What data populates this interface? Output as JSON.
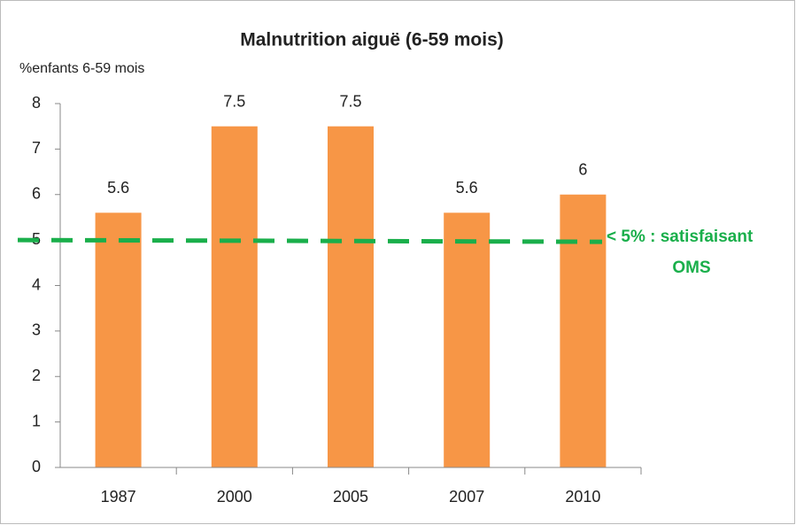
{
  "chart_data": {
    "type": "bar",
    "title": "Malnutrition aiguë (6-59 mois)",
    "y_label": "%enfants 6-59 mois",
    "categories": [
      "1987",
      "2000",
      "2005",
      "2007",
      "2010"
    ],
    "values": [
      5.6,
      7.5,
      7.5,
      5.6,
      6
    ],
    "color": "#f79646",
    "ylim": [
      0,
      8
    ],
    "yticks": [
      0,
      1,
      2,
      3,
      4,
      5,
      6,
      7,
      8
    ],
    "threshold": 5,
    "threshold_color": "#1aaf4b",
    "annotations": [
      "< 5% : satisfaisant",
      "OMS"
    ]
  }
}
